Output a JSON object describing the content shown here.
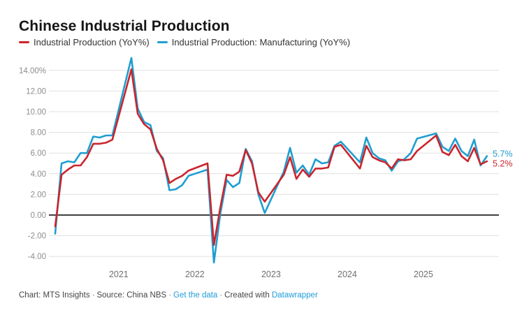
{
  "header": {
    "title": "Chinese Industrial Production"
  },
  "legend": {
    "items": [
      {
        "label": "Industrial Production (YoY%)",
        "color": "#c9252d"
      },
      {
        "label": "Industrial Production: Manufacturing (YoY%)",
        "color": "#1f9ed1"
      }
    ]
  },
  "chart_data": {
    "type": "line",
    "title": "Chinese Industrial Production",
    "legend_position": "top",
    "grid": "horizontal-only",
    "x_axis": {
      "years": [
        "2021",
        "2022",
        "2023",
        "2024",
        "2025"
      ],
      "range": [
        "2020-03",
        "2025-11"
      ],
      "note": "monthly data; Jan-Feb values not published, line connects Dec to Mar"
    },
    "y_axis": {
      "ticks": [
        14,
        12,
        10,
        8,
        6,
        4,
        2,
        0,
        -2,
        -4
      ],
      "tick_labels": [
        "14.00%",
        "12.00",
        "10.00",
        "8.00",
        "6.00",
        "4.00",
        "2.00",
        "0.00",
        "-2.00",
        "-4.00"
      ],
      "unit": "percent YoY"
    },
    "dates": [
      "2020-03",
      "2020-04",
      "2020-05",
      "2020-06",
      "2020-07",
      "2020-08",
      "2020-09",
      "2020-10",
      "2020-11",
      "2020-12",
      "2021-03",
      "2021-04",
      "2021-05",
      "2021-06",
      "2021-07",
      "2021-08",
      "2021-09",
      "2021-10",
      "2021-11",
      "2021-12",
      "2022-03",
      "2022-04",
      "2022-05",
      "2022-06",
      "2022-07",
      "2022-08",
      "2022-09",
      "2022-10",
      "2022-11",
      "2022-12",
      "2023-03",
      "2023-04",
      "2023-05",
      "2023-06",
      "2023-07",
      "2023-08",
      "2023-09",
      "2023-10",
      "2023-11",
      "2023-12",
      "2024-03",
      "2024-04",
      "2024-05",
      "2024-06",
      "2024-07",
      "2024-08",
      "2024-09",
      "2024-10",
      "2024-11",
      "2024-12",
      "2025-03",
      "2025-04",
      "2025-05",
      "2025-06",
      "2025-07",
      "2025-08",
      "2025-09",
      "2025-10",
      "2025-11"
    ],
    "series": [
      {
        "name": "Industrial Production (YoY%)",
        "key": "industrial-production",
        "color": "#c9252d",
        "end_label": "5.2%",
        "values": [
          -1.1,
          3.9,
          4.4,
          4.8,
          4.8,
          5.6,
          6.9,
          6.9,
          7.0,
          7.3,
          14.1,
          9.8,
          8.8,
          8.3,
          6.4,
          5.3,
          3.1,
          3.5,
          3.8,
          4.3,
          5.0,
          -2.9,
          0.7,
          3.9,
          3.8,
          4.2,
          6.3,
          5.0,
          2.2,
          1.3,
          3.9,
          5.6,
          3.5,
          4.4,
          3.7,
          4.5,
          4.5,
          4.6,
          6.6,
          6.8,
          4.5,
          6.7,
          5.6,
          5.3,
          5.1,
          4.5,
          5.4,
          5.3,
          5.4,
          6.2,
          7.7,
          6.1,
          5.8,
          6.8,
          5.7,
          5.2,
          6.5,
          4.9,
          5.2
        ]
      },
      {
        "name": "Industrial Production: Manufacturing (YoY%)",
        "key": "manufacturing",
        "color": "#1f9ed1",
        "end_label": "5.7%",
        "values": [
          -1.8,
          5.0,
          5.2,
          5.1,
          6.0,
          6.0,
          7.6,
          7.5,
          7.7,
          7.7,
          15.2,
          10.3,
          9.0,
          8.7,
          6.2,
          5.5,
          2.4,
          2.5,
          2.9,
          3.8,
          4.4,
          -4.6,
          0.1,
          3.4,
          2.7,
          3.1,
          6.4,
          5.2,
          2.0,
          0.2,
          4.2,
          6.5,
          4.1,
          4.8,
          3.9,
          5.4,
          5.0,
          5.1,
          6.7,
          7.1,
          5.1,
          7.5,
          6.0,
          5.5,
          5.3,
          4.3,
          5.2,
          5.4,
          6.0,
          7.4,
          7.9,
          6.6,
          6.2,
          7.4,
          6.2,
          5.7,
          7.3,
          4.8,
          5.7
        ]
      }
    ]
  },
  "footer": {
    "chart_credit": "Chart: MTS Insights",
    "separator": "·",
    "source": "Source: China NBS",
    "get_data_label": "Get the data",
    "created_with": "Created with",
    "tool_link_label": "Datawrapper"
  }
}
